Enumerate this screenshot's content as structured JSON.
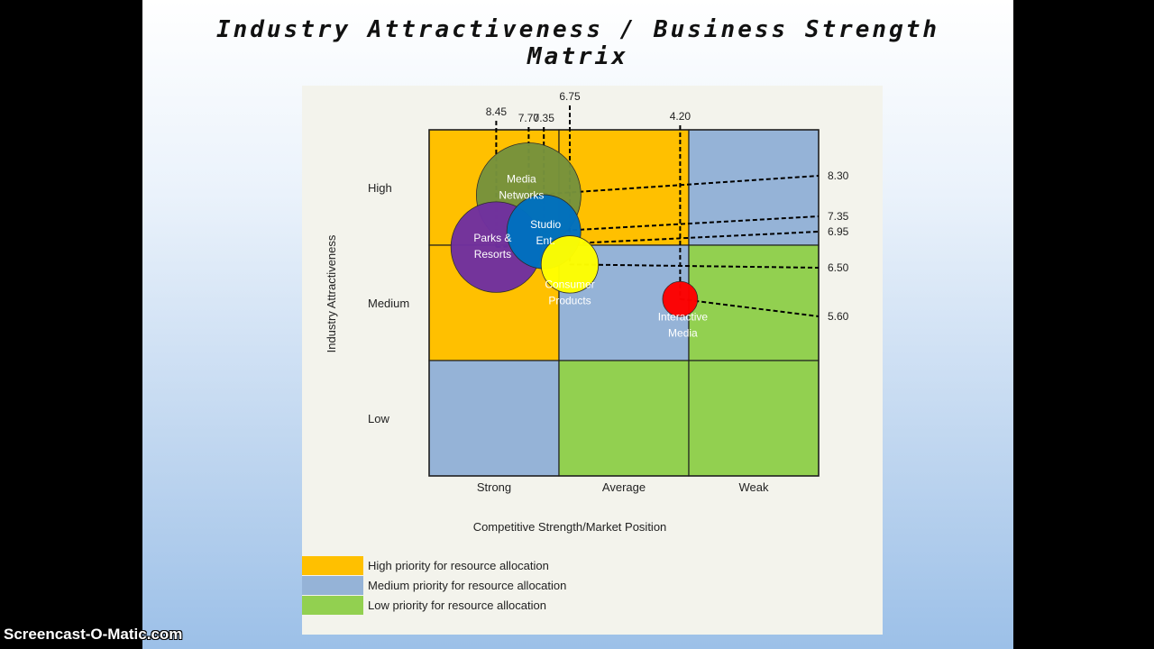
{
  "slide": {
    "title_line1": "Industry Attractiveness / Business Strength",
    "title_line2": "Matrix"
  },
  "watermark": "Screencast-O-Matic.com",
  "chart_data": {
    "type": "scatter",
    "subtype": "bubble-matrix",
    "xlabel": "Competitive Strength/Market Position",
    "ylabel": "Industry Attractiveness",
    "x_categories": [
      "Strong",
      "Average",
      "Weak"
    ],
    "y_categories": [
      "High",
      "Medium",
      "Low"
    ],
    "xlim": [
      10,
      1
    ],
    "ylim": [
      1,
      10
    ],
    "grid_colors": [
      [
        "high",
        "high",
        "medium"
      ],
      [
        "high",
        "medium",
        "low"
      ],
      [
        "medium",
        "low",
        "low"
      ]
    ],
    "colors": {
      "high": "#ffc000",
      "medium": "#95b3d7",
      "low": "#92d050"
    },
    "legend": [
      {
        "key": "high",
        "label": "High priority for resource allocation"
      },
      {
        "key": "medium",
        "label": "Medium priority for resource allocation"
      },
      {
        "key": "low",
        "label": "Low priority for resource allocation"
      }
    ],
    "points": [
      {
        "name": "Media Networks",
        "label_lines": [
          "Media",
          "Networks"
        ],
        "x": 7.7,
        "y": 8.3,
        "size": 4,
        "color": "#76923c",
        "label_color": "#ffffff",
        "xlabel": "7.70",
        "ylabel": "8.30"
      },
      {
        "name": "Parks & Resorts",
        "label_lines": [
          "Parks &",
          "Resorts"
        ],
        "x": 8.45,
        "y": 6.95,
        "size": 3,
        "color": "#7030a0",
        "label_color": "#ffffff",
        "xlabel": "8.45",
        "ylabel": "6.95"
      },
      {
        "name": "Studio Ent.",
        "label_lines": [
          "Studio",
          "Ent."
        ],
        "x": 7.35,
        "y": 7.35,
        "size": 2,
        "color": "#0070c0",
        "label_color": "#ffffff",
        "xlabel": "7.35",
        "ylabel": "7.35"
      },
      {
        "name": "Consumer Products",
        "label_lines": [
          "Consumer",
          "Products"
        ],
        "x": 6.75,
        "y": 6.5,
        "size": 1.2,
        "color": "#ffff00",
        "label_color": "#ffffff",
        "xlabel": "6.75",
        "ylabel": "6.50"
      },
      {
        "name": "Interactive Media",
        "label_lines": [
          "Interactive",
          "Media"
        ],
        "x": 4.2,
        "y": 5.6,
        "size": 0.45,
        "color": "#ff0000",
        "label_color": "#ffffff",
        "xlabel": "4.20",
        "ylabel": "5.60"
      }
    ]
  }
}
